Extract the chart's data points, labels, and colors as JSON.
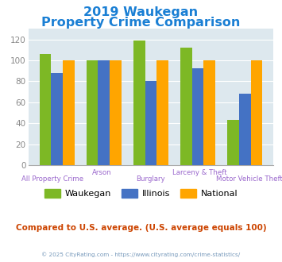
{
  "title_line1": "2019 Waukegan",
  "title_line2": "Property Crime Comparison",
  "categories": [
    "All Property Crime",
    "Arson",
    "Burglary",
    "Larceny & Theft",
    "Motor Vehicle Theft"
  ],
  "waukegan": [
    106,
    100,
    119,
    112,
    43
  ],
  "illinois": [
    88,
    100,
    80,
    92,
    68
  ],
  "national": [
    100,
    100,
    100,
    100,
    100
  ],
  "bar_colors": {
    "waukegan": "#7db825",
    "illinois": "#4472c4",
    "national": "#ffa500"
  },
  "ylim": [
    0,
    130
  ],
  "yticks": [
    0,
    20,
    40,
    60,
    80,
    100,
    120
  ],
  "legend_labels": [
    "Waukegan",
    "Illinois",
    "National"
  ],
  "subtitle": "Compared to U.S. average. (U.S. average equals 100)",
  "footer": "© 2025 CityRating.com - https://www.cityrating.com/crime-statistics/",
  "title_color": "#1a7fd4",
  "subtitle_color": "#cc4400",
  "footer_color": "#7799bb",
  "bg_color": "#dde8ee",
  "fig_bg": "#ffffff",
  "xlabel_color": "#9966cc",
  "bar_width": 0.25,
  "ytick_color": "#888888",
  "grid_color": "#ffffff",
  "spine_color": "#aaaaaa"
}
